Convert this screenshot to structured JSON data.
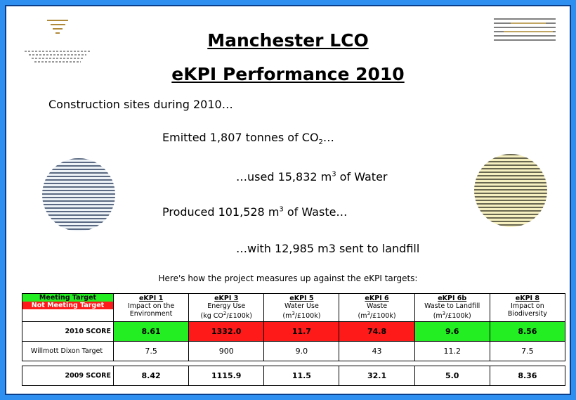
{
  "header": {
    "title": "Manchester LCO",
    "subtitle": "eKPI Performance 2010"
  },
  "intro": "Construction sites during 2010…",
  "facts": [
    {
      "parts": [
        {
          "text": "Emitted 1,807 tonnes of CO"
        },
        {
          "text": "2",
          "script": "sub"
        },
        {
          "text": "…"
        }
      ]
    },
    {
      "parts": [
        {
          "text": "…used 15,832 m"
        },
        {
          "text": "3",
          "script": "sup"
        },
        {
          "text": " of Water"
        }
      ]
    },
    {
      "parts": [
        {
          "text": "Produced 101,528 m"
        },
        {
          "text": "3",
          "script": "sup"
        },
        {
          "text": " of Waste…"
        }
      ]
    },
    {
      "parts": [
        {
          "text": "…with 12,985 m3 sent to landfill"
        }
      ]
    }
  ],
  "table_intro": "Here's how the project measures up against the eKPI targets:",
  "legend": [
    {
      "label": "Meeting Target",
      "color": "#22ee22"
    },
    {
      "label": "Not Meeting Target",
      "color": "#ff1a1a"
    }
  ],
  "columns": [
    {
      "name": "eKPI 1",
      "desc": "Impact on the Environment",
      "unit": []
    },
    {
      "name": "eKPI 3",
      "desc": "Energy Use",
      "unit": [
        {
          "text": "(kg CO"
        },
        {
          "text": "2",
          "script": "sup"
        },
        {
          "text": "/£100k)"
        }
      ]
    },
    {
      "name": "eKPI 5",
      "desc": "Water Use",
      "unit": [
        {
          "text": "(m"
        },
        {
          "text": "3",
          "script": "sup"
        },
        {
          "text": "/£100k)"
        }
      ]
    },
    {
      "name": "eKPI 6",
      "desc": "Waste",
      "unit": [
        {
          "text": "(m"
        },
        {
          "text": "3",
          "script": "sup"
        },
        {
          "text": "/£100k)"
        }
      ]
    },
    {
      "name": "eKPI 6b",
      "desc": "Waste to Landfill",
      "unit": [
        {
          "text": "(m"
        },
        {
          "text": "3",
          "script": "sup"
        },
        {
          "text": "/£100k)"
        }
      ]
    },
    {
      "name": "eKPI 8",
      "desc": "Impact on Biodiversity",
      "unit": []
    }
  ],
  "rows": [
    {
      "label": "2010 SCORE",
      "kind": "score",
      "values": [
        "8.61",
        "1332.0",
        "11.7",
        "74.8",
        "9.6",
        "8.56"
      ],
      "colors": [
        "#22ee22",
        "#ff1a1a",
        "#ff1a1a",
        "#ff1a1a",
        "#22ee22",
        "#22ee22"
      ]
    },
    {
      "label": "Willmott Dixon Target",
      "kind": "target",
      "values": [
        "7.5",
        "900",
        "9.0",
        "43",
        "11.2",
        "7.5"
      ]
    },
    {
      "label": "2009 SCORE",
      "kind": "score",
      "values": [
        "8.42",
        "1115.9",
        "11.5",
        "32.1",
        "5.0",
        "8.36"
      ]
    }
  ]
}
